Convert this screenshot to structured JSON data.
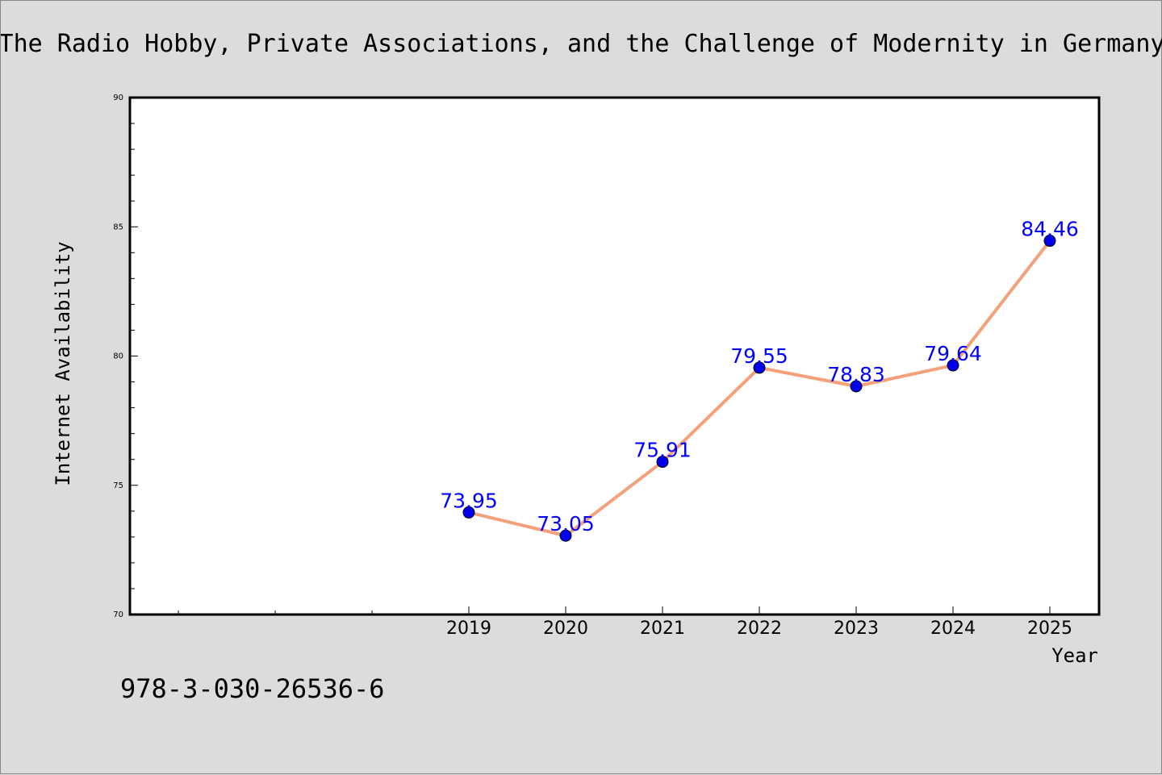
{
  "chart_data": {
    "type": "line",
    "title": "The Radio Hobby, Private Associations, and the Challenge of Modernity in Germany",
    "xlabel": "Year",
    "ylabel": "Internet Availability",
    "x": [
      "2019",
      "2020",
      "2021",
      "2022",
      "2023",
      "2024",
      "2025"
    ],
    "series": [
      {
        "values": [
          73.95,
          73.05,
          75.91,
          79.55,
          78.83,
          79.64,
          84.46
        ],
        "labels": [
          "73.95",
          "73.05",
          "75.91",
          "79.55",
          "78.83",
          "79.64",
          "84.46"
        ],
        "line_color": "#f4a07a",
        "marker_color": "#0000ee",
        "label_color": "#0000ff"
      }
    ],
    "ylim": [
      70,
      90
    ],
    "yticks": [
      70,
      75,
      80,
      85,
      90
    ],
    "ytick_labels": [
      "70",
      "75",
      "80",
      "85",
      "90"
    ],
    "x_slots_before_data": 3,
    "grid": false,
    "legend": "none",
    "footer_text": "978-3-030-26536-6"
  }
}
